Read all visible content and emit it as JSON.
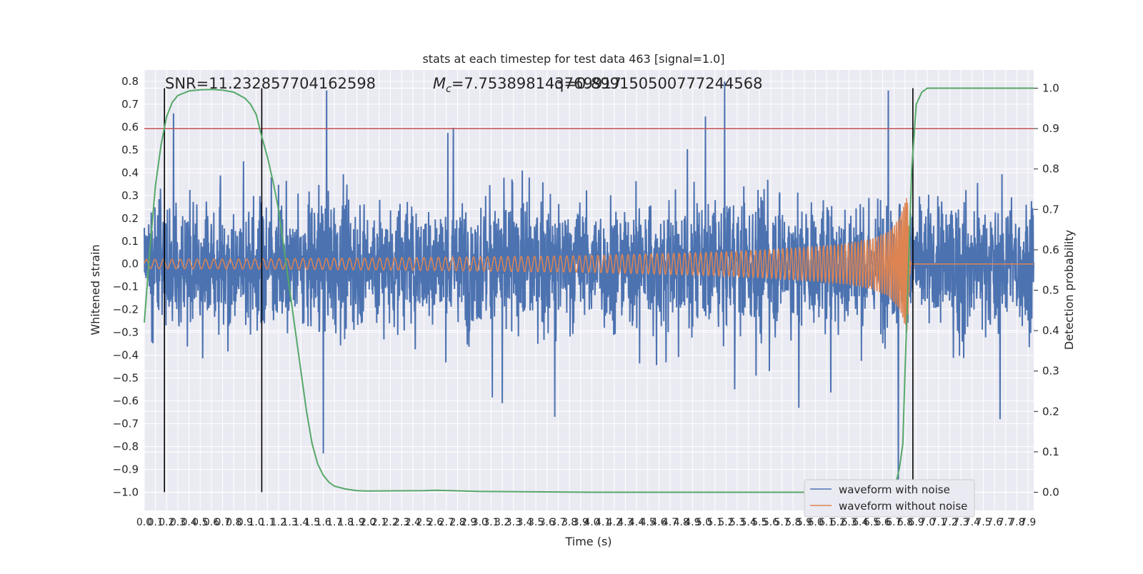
{
  "chart_data": {
    "type": "line",
    "title": "stats at each timestep for test data 463 [signal=1.0]",
    "xlabel": "Time (s)",
    "ylabel": "Whitened strain",
    "y2label": "Detection probability",
    "xlim": [
      0.0,
      7.95
    ],
    "ylim": [
      -1.08,
      0.85
    ],
    "y2lim": [
      -0.045,
      1.045
    ],
    "x_ticks": [
      "0.0",
      "0.1",
      "0.2",
      "0.3",
      "0.4",
      "0.5",
      "0.6",
      "0.7",
      "0.8",
      "0.9",
      "1.0",
      "1.1",
      "1.2",
      "1.3",
      "1.4",
      "1.5",
      "1.6",
      "1.7",
      "1.8",
      "1.9",
      "2.0",
      "2.1",
      "2.2",
      "2.3",
      "2.4",
      "2.5",
      "2.6",
      "2.7",
      "2.8",
      "2.9",
      "3.0",
      "3.1",
      "3.2",
      "3.3",
      "3.4",
      "3.5",
      "3.6",
      "3.7",
      "3.8",
      "3.9",
      "4.0",
      "4.1",
      "4.2",
      "4.3",
      "4.4",
      "4.5",
      "4.6",
      "4.7",
      "4.8",
      "4.9",
      "5.0",
      "5.1",
      "5.2",
      "5.3",
      "5.4",
      "5.5",
      "5.6",
      "5.7",
      "5.8",
      "5.9",
      "6.0",
      "6.1",
      "6.2",
      "6.3",
      "6.4",
      "6.5",
      "6.6",
      "6.7",
      "6.8",
      "6.9",
      "7.0",
      "7.1",
      "7.2",
      "7.3",
      "7.4",
      "7.5",
      "7.6",
      "7.7",
      "7.8",
      "7.9"
    ],
    "y_ticks": [
      "0.8",
      "0.7",
      "0.6",
      "0.5",
      "0.4",
      "0.3",
      "0.2",
      "0.1",
      "0.0",
      "−0.1",
      "−0.2",
      "−0.3",
      "−0.4",
      "−0.5",
      "−0.6",
      "−0.7",
      "−0.8",
      "−0.9",
      "−1.0"
    ],
    "y2_ticks": [
      "1.0",
      "0.9",
      "0.8",
      "0.7",
      "0.6",
      "0.5",
      "0.4",
      "0.3",
      "0.2",
      "0.1",
      "0.0"
    ],
    "annotations": {
      "snr": "SNR=11.232857704162598",
      "mc_symbol": "M",
      "mc_sub": "c",
      "mc_value": "=7.753898143769917",
      "overlap": "q=0.899150500777244568"
    },
    "threshold": {
      "y2": 0.9,
      "color": "#c44e52"
    },
    "event_lines_x": [
      0.18,
      1.05,
      6.87
    ],
    "legend": {
      "placement": "lower-right",
      "entries": [
        {
          "name": "waveform with noise",
          "color": "#4c72b0"
        },
        {
          "name": "waveform without noise",
          "color": "#dd8452"
        }
      ]
    },
    "series": [
      {
        "name": "waveform with noise",
        "color": "#4c72b0",
        "kind": "noisy-strain",
        "x_range": [
          0.0,
          7.95
        ],
        "typical_abs_amplitude": 0.35,
        "labeled_peaks": [
          {
            "x": 0.26,
            "y": 0.66
          },
          {
            "x": 1.63,
            "y": 0.76
          },
          {
            "x": 1.6,
            "y": -0.83
          },
          {
            "x": 3.2,
            "y": -0.61
          },
          {
            "x": 3.67,
            "y": -0.67
          },
          {
            "x": 6.65,
            "y": 0.76
          },
          {
            "x": 6.74,
            "y": -0.96
          },
          {
            "x": 5.85,
            "y": -0.63
          },
          {
            "x": 7.65,
            "y": -0.68
          }
        ]
      },
      {
        "name": "waveform without noise",
        "color": "#dd8452",
        "kind": "chirp",
        "x": [
          0.0,
          1.0,
          2.0,
          3.0,
          4.0,
          5.0,
          5.5,
          6.0,
          6.3,
          6.5,
          6.65,
          6.75,
          6.82,
          6.85,
          7.95
        ],
        "envelope": [
          0.02,
          0.022,
          0.026,
          0.031,
          0.037,
          0.05,
          0.06,
          0.075,
          0.09,
          0.11,
          0.14,
          0.2,
          0.3,
          0.0,
          0.0
        ]
      },
      {
        "name": "detection probability",
        "color": "#55a868",
        "axis": "right",
        "x": [
          0.0,
          0.05,
          0.1,
          0.15,
          0.2,
          0.25,
          0.3,
          0.4,
          0.5,
          0.6,
          0.7,
          0.8,
          0.9,
          0.95,
          1.0,
          1.05,
          1.1,
          1.15,
          1.2,
          1.25,
          1.3,
          1.35,
          1.4,
          1.45,
          1.5,
          1.55,
          1.6,
          1.65,
          1.7,
          1.8,
          1.9,
          2.0,
          2.5,
          2.6,
          3.0,
          4.0,
          5.0,
          6.0,
          6.5,
          6.7,
          6.75,
          6.78,
          6.8,
          6.83,
          6.86,
          6.9,
          6.95,
          7.0,
          7.5,
          7.95
        ],
        "y": [
          0.42,
          0.6,
          0.76,
          0.86,
          0.93,
          0.965,
          0.982,
          0.993,
          0.996,
          0.997,
          0.995,
          0.99,
          0.975,
          0.96,
          0.935,
          0.88,
          0.83,
          0.77,
          0.7,
          0.6,
          0.5,
          0.4,
          0.3,
          0.2,
          0.12,
          0.07,
          0.042,
          0.025,
          0.015,
          0.008,
          0.004,
          0.003,
          0.004,
          0.005,
          0.002,
          0.0,
          0.0,
          0.0,
          0.001,
          0.0,
          0.06,
          0.12,
          0.3,
          0.55,
          0.8,
          0.96,
          0.99,
          1.0,
          1.0,
          1.0
        ]
      }
    ]
  }
}
